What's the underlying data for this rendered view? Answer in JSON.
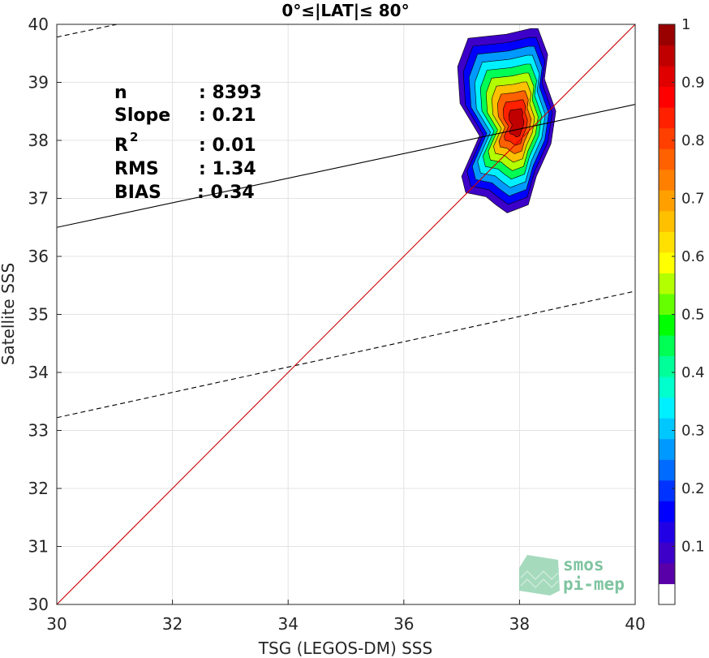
{
  "chart_data": {
    "type": "contour",
    "title": "0°≤|LAT|≤ 80°",
    "xlabel": "TSG (LEGOS-DM) SSS",
    "ylabel": "Satellite SSS",
    "xlim": [
      30,
      40
    ],
    "ylim": [
      30,
      40
    ],
    "xticks": [
      "30",
      "32",
      "34",
      "36",
      "38",
      "40"
    ],
    "yticks": [
      "30",
      "31",
      "32",
      "33",
      "34",
      "35",
      "36",
      "37",
      "38",
      "39",
      "40"
    ],
    "grid": true,
    "stats": {
      "n_label": "n",
      "n_value": ": 8393",
      "slope_label": "Slope",
      "slope_value": ": 0.21",
      "r2_label": "R",
      "r2_sup": "2",
      "r2_value": ": 0.01",
      "rms_label": "RMS",
      "rms_value": ": 1.34",
      "bias_label": "BIAS",
      "bias_value": ": 0.34"
    },
    "lines": {
      "identity": {
        "from": [
          30,
          30
        ],
        "to": [
          40,
          40
        ],
        "color": "#cc0000"
      },
      "fit": {
        "from": [
          30,
          36.5
        ],
        "to": [
          40,
          38.62
        ],
        "color": "#000000"
      },
      "envelope_upper": {
        "from": [
          30,
          39.78
        ],
        "to": [
          40,
          41.9
        ],
        "style": "dashed"
      },
      "envelope_lower": {
        "from": [
          30,
          33.22
        ],
        "to": [
          40,
          35.4
        ],
        "style": "dashed"
      }
    },
    "density": {
      "peak": [
        37.95,
        38.38
      ],
      "levels": [
        0.05,
        0.1,
        0.2,
        0.3,
        0.4,
        0.5,
        0.6,
        0.7,
        0.8,
        0.9
      ],
      "outer_extent": {
        "x": [
          37.0,
          38.6
        ],
        "y": [
          36.75,
          39.9
        ]
      }
    },
    "colorbar": {
      "min": 0,
      "max": 1,
      "ticks": [
        "0.1",
        "0.2",
        "0.3",
        "0.4",
        "0.5",
        "0.6",
        "0.7",
        "0.8",
        "0.9",
        "1"
      ],
      "colors": [
        "#ffffff",
        "#5a00a8",
        "#3d00c8",
        "#2200e6",
        "#0000ff",
        "#0033ff",
        "#006bff",
        "#0099ff",
        "#00c8ff",
        "#00f0ff",
        "#00ffcc",
        "#00ff99",
        "#00ff55",
        "#00ff00",
        "#66ff00",
        "#b3ff00",
        "#ffff00",
        "#ffe000",
        "#ffc000",
        "#ffa000",
        "#ff8000",
        "#ff6000",
        "#ff3f00",
        "#ff2000",
        "#ff0000",
        "#e00000",
        "#c00000",
        "#990000"
      ]
    },
    "watermark": {
      "line1": "smos",
      "line2": "pi-mep"
    }
  }
}
